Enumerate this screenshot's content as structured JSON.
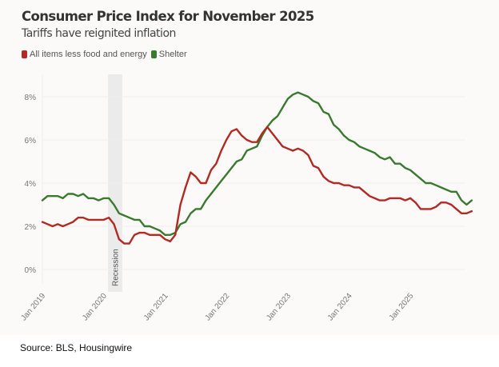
{
  "header": {
    "title": "Consumer Price Index for November 2025",
    "subtitle": "Tariffs have reignited inflation"
  },
  "source": "Source: BLS, Housingwire",
  "chart_data": {
    "type": "line",
    "title": "Consumer Price Index for November 2025",
    "subtitle": "Tariffs have reignited inflation",
    "xlabel": "",
    "ylabel": "",
    "x_start": "Jan 2019",
    "x_end": "Nov 2025",
    "x_frequency": "monthly",
    "x_ticks": [
      "Jan 2019",
      "Jan 2020",
      "Jan 2021",
      "Jan 2022",
      "Jan 2023",
      "Jan 2024",
      "Jan 2025"
    ],
    "y_ticks": [
      "0%",
      "2%",
      "4%",
      "6%",
      "8%"
    ],
    "y_tick_values": [
      0,
      2,
      4,
      6,
      8
    ],
    "ylim": [
      -0.4,
      8.6
    ],
    "grid": true,
    "legend_position": "top-left",
    "annotations": [
      {
        "type": "band",
        "label": "Recession",
        "x_start": "Feb 2020",
        "x_end": "Apr 2020"
      }
    ],
    "series": [
      {
        "name": "All items less food and energy",
        "color": "#b22a22",
        "values": [
          2.2,
          2.1,
          2.0,
          2.1,
          2.0,
          2.1,
          2.2,
          2.4,
          2.4,
          2.3,
          2.3,
          2.3,
          2.3,
          2.4,
          2.1,
          1.4,
          1.2,
          1.2,
          1.6,
          1.7,
          1.7,
          1.6,
          1.6,
          1.6,
          1.4,
          1.3,
          1.6,
          3.0,
          3.8,
          4.5,
          4.3,
          4.0,
          4.0,
          4.6,
          4.9,
          5.5,
          6.0,
          6.4,
          6.5,
          6.2,
          6.0,
          5.9,
          5.9,
          6.3,
          6.6,
          6.3,
          6.0,
          5.7,
          5.6,
          5.5,
          5.6,
          5.5,
          5.3,
          4.8,
          4.7,
          4.3,
          4.1,
          4.0,
          4.0,
          3.9,
          3.9,
          3.8,
          3.8,
          3.6,
          3.4,
          3.3,
          3.2,
          3.2,
          3.3,
          3.3,
          3.3,
          3.2,
          3.3,
          3.1,
          2.8,
          2.8,
          2.8,
          2.9,
          3.1,
          3.1,
          3.0,
          2.8,
          2.6,
          2.6,
          2.7
        ]
      },
      {
        "name": "Shelter",
        "color": "#3a7a2e",
        "values": [
          3.2,
          3.4,
          3.4,
          3.4,
          3.3,
          3.5,
          3.5,
          3.4,
          3.5,
          3.3,
          3.3,
          3.2,
          3.3,
          3.3,
          3.0,
          2.6,
          2.5,
          2.4,
          2.3,
          2.3,
          2.0,
          2.0,
          1.9,
          1.8,
          1.6,
          1.6,
          1.7,
          2.1,
          2.2,
          2.6,
          2.8,
          2.8,
          3.2,
          3.5,
          3.8,
          4.1,
          4.4,
          4.7,
          5.0,
          5.1,
          5.5,
          5.6,
          5.7,
          6.2,
          6.6,
          6.9,
          7.1,
          7.5,
          7.9,
          8.1,
          8.2,
          8.1,
          8.0,
          7.8,
          7.7,
          7.3,
          7.2,
          6.7,
          6.5,
          6.2,
          6.0,
          5.9,
          5.7,
          5.6,
          5.5,
          5.4,
          5.2,
          5.1,
          5.2,
          4.9,
          4.9,
          4.7,
          4.6,
          4.4,
          4.2,
          4.0,
          4.0,
          3.9,
          3.8,
          3.7,
          3.6,
          3.6,
          3.2,
          3.0,
          3.2
        ]
      }
    ]
  }
}
